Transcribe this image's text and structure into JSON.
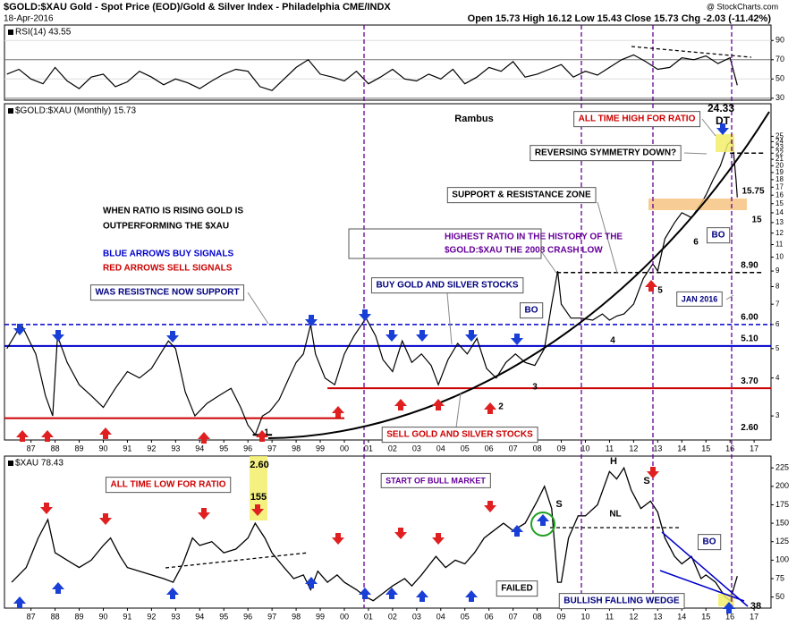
{
  "header": {
    "title": "$GOLD:$XAU Gold - Spot Price (EOD)/Gold & Silver Index - Philadelphia CME/INDX",
    "date": "18-Apr-2016",
    "ohlc": "Open 15.73 High 16.12 Low 15.43 Close 15.73 Chg -2.03 (-11.42%)",
    "credit": "@ StockCharts.com"
  },
  "chart_data": [
    {
      "type": "line",
      "label": "RSI(14) 43.55",
      "color": "#000000",
      "xlim": [
        1985.9,
        2017.7
      ],
      "ylim": [
        28,
        106
      ],
      "yticks": [
        30,
        50,
        70,
        90
      ],
      "grid": true,
      "x": [
        1986,
        1986.5,
        1987,
        1987.5,
        1988,
        1988.5,
        1989,
        1989.5,
        1990,
        1990.5,
        1991,
        1991.5,
        1992,
        1992.5,
        1993,
        1993.5,
        1994,
        1994.5,
        1995,
        1995.5,
        1996,
        1996.5,
        1997,
        1997.5,
        1998,
        1998.5,
        1999,
        1999.5,
        2000,
        2000.5,
        2001,
        2001.5,
        2002,
        2002.5,
        2003,
        2003.5,
        2004,
        2004.5,
        2005,
        2005.5,
        2006,
        2006.5,
        2007,
        2007.5,
        2008,
        2008.5,
        2009,
        2009.5,
        2010,
        2010.5,
        2011,
        2011.5,
        2012,
        2012.5,
        2013,
        2013.5,
        2014,
        2014.5,
        2015,
        2015.5,
        2016,
        2016.3
      ],
      "values": [
        55,
        60,
        50,
        45,
        62,
        48,
        40,
        52,
        55,
        42,
        47,
        58,
        52,
        44,
        50,
        46,
        40,
        48,
        55,
        60,
        58,
        42,
        38,
        50,
        62,
        70,
        55,
        52,
        48,
        58,
        45,
        52,
        60,
        50,
        48,
        55,
        50,
        60,
        45,
        52,
        62,
        58,
        68,
        52,
        55,
        60,
        65,
        52,
        58,
        54,
        62,
        70,
        75,
        68,
        60,
        62,
        72,
        70,
        74,
        66,
        72,
        43.55
      ]
    },
    {
      "type": "line",
      "label": "$GOLD:$XAU (Monthly) 15.73",
      "color": "#000000",
      "log_scale": true,
      "xlim": [
        1985.9,
        2017.7
      ],
      "ylim": [
        2.5,
        32
      ],
      "yticks": [
        3,
        4,
        5,
        6,
        7,
        8,
        9,
        10,
        11,
        12,
        13,
        14,
        15,
        16,
        17,
        18,
        19,
        20,
        21,
        22,
        23,
        24,
        25
      ],
      "xticks": [
        {
          "value": 1987,
          "label": "87"
        },
        {
          "value": 1988,
          "label": "88"
        },
        {
          "value": 1989,
          "label": "89"
        },
        {
          "value": 1990,
          "label": "90"
        },
        {
          "value": 1991,
          "label": "91"
        },
        {
          "value": 1992,
          "label": "92"
        },
        {
          "value": 1993,
          "label": "93"
        },
        {
          "value": 1994,
          "label": "94"
        },
        {
          "value": 1995,
          "label": "95"
        },
        {
          "value": 1996,
          "label": "96"
        },
        {
          "value": 1997,
          "label": "97"
        },
        {
          "value": 1998,
          "label": "98"
        },
        {
          "value": 1999,
          "label": "99"
        },
        {
          "value": 2000,
          "label": "00"
        },
        {
          "value": 2001,
          "label": "01"
        },
        {
          "value": 2002,
          "label": "02"
        },
        {
          "value": 2003,
          "label": "03"
        },
        {
          "value": 2004,
          "label": "04"
        },
        {
          "value": 2005,
          "label": "05"
        },
        {
          "value": 2006,
          "label": "06"
        },
        {
          "value": 2007,
          "label": "07"
        },
        {
          "value": 2008,
          "label": "08"
        },
        {
          "value": 2009,
          "label": "09"
        },
        {
          "value": 2010,
          "label": "10"
        },
        {
          "value": 2011,
          "label": "11"
        },
        {
          "value": 2012,
          "label": "12"
        },
        {
          "value": 2013,
          "label": "13"
        },
        {
          "value": 2014,
          "label": "14"
        },
        {
          "value": 2015,
          "label": "15"
        },
        {
          "value": 2016,
          "label": "16"
        },
        {
          "value": 2017,
          "label": "17"
        }
      ],
      "x": [
        1986.0,
        1986.6,
        1987.2,
        1987.6,
        1987.9,
        1988.1,
        1988.5,
        1989.0,
        1989.5,
        1990.0,
        1990.5,
        1991.0,
        1991.5,
        1992.0,
        1992.7,
        1993.0,
        1993.4,
        1993.8,
        1994.3,
        1994.8,
        1995.3,
        1995.7,
        1996.0,
        1996.3,
        1996.6,
        1996.9,
        1997.3,
        1997.7,
        1998.0,
        1998.3,
        1998.6,
        1998.8,
        1999.2,
        1999.6,
        2000.0,
        2000.4,
        2000.9,
        2001.3,
        2001.6,
        2002.0,
        2002.4,
        2002.8,
        2003.2,
        2003.6,
        2003.9,
        2004.3,
        2004.7,
        2005.1,
        2005.5,
        2005.9,
        2006.3,
        2006.7,
        2007.1,
        2007.5,
        2007.9,
        2008.3,
        2008.6,
        2008.85,
        2009.0,
        2009.4,
        2009.8,
        2010.3,
        2010.7,
        2011.0,
        2011.3,
        2011.6,
        2012.0,
        2012.4,
        2012.8,
        2013.0,
        2013.3,
        2013.7,
        2014.0,
        2014.4,
        2014.8,
        2015.0,
        2015.3,
        2015.6,
        2015.9,
        2016.1,
        2016.25,
        2016.3
      ],
      "values": [
        5.0,
        6.0,
        4.8,
        3.5,
        3.0,
        5.5,
        4.5,
        3.8,
        3.5,
        3.2,
        3.7,
        4.2,
        4.0,
        4.3,
        5.3,
        5.0,
        3.6,
        3.0,
        3.3,
        3.5,
        3.7,
        3.2,
        2.8,
        2.6,
        3.0,
        3.1,
        3.4,
        4.0,
        4.5,
        4.8,
        6.0,
        4.8,
        4.0,
        3.8,
        4.8,
        5.5,
        6.3,
        5.5,
        4.6,
        4.2,
        5.3,
        4.5,
        4.8,
        4.4,
        3.8,
        4.6,
        5.2,
        4.8,
        5.4,
        4.3,
        4.0,
        4.5,
        4.8,
        4.5,
        4.4,
        5.0,
        7.0,
        9.0,
        7.0,
        6.3,
        6.3,
        6.2,
        6.5,
        6.2,
        6.4,
        6.5,
        7.0,
        8.5,
        9.5,
        9.0,
        11.5,
        13.0,
        14.0,
        13.5,
        15.0,
        16.0,
        18.0,
        20.0,
        23.5,
        24.3,
        18.0,
        15.73
      ],
      "levels": [
        {
          "value": 8.9,
          "label": "8.90",
          "color": "#000000",
          "dash": true,
          "x": [
            2008.8,
            2017.4
          ]
        },
        {
          "value": 6.0,
          "label": "6.00",
          "color": "#0000cc",
          "dash": true,
          "x": [
            1985.9,
            2017.7
          ]
        },
        {
          "value": 5.1,
          "label": "5.10",
          "color": "#0000cc",
          "dash": false,
          "x": [
            1985.9,
            2017.7
          ]
        },
        {
          "value": 3.7,
          "label": "3.70",
          "color": "#cc0000",
          "dash": false,
          "x": [
            1999.3,
            2017.7
          ]
        },
        {
          "value": 2.6,
          "label": "2.60",
          "color": "#000000",
          "dash": false,
          "x": [
            1996.2,
            1997.0
          ]
        },
        {
          "value": 2.95,
          "color": "#cc0000",
          "dash": false,
          "x": [
            1985.9,
            2000.0
          ]
        },
        {
          "value": 22,
          "color": "#000000",
          "dash": true,
          "x": [
            2016.0,
            2017.4
          ]
        }
      ],
      "annotations": [
        "Rambus",
        "24.33",
        "DT",
        "ALL TIME HIGH FOR RATIO",
        "REVERSING SYMMETRY DOWN?",
        "SUPPORT & RESISTANCE ZONE",
        "WHEN RATIO IS RISING GOLD IS",
        "OUTPERFORMING THE $XAU",
        "BLUE ARROWS BUY SIGNALS",
        "RED ARROWS SELL SIGNALS",
        "HIGHEST RATIO IN THE HISTORY OF THE",
        "$GOLD:$XAU THE 2008 CRASH LOW",
        "WAS RESISTNCE NOW SUPPORT",
        "BUY GOLD AND SILVER STOCKS",
        "BO",
        "JAN 2016",
        "BO",
        "SELL GOLD AND SILVER STOCKS",
        "1",
        "2",
        "3",
        "4",
        "5",
        "6",
        "15.75",
        "15"
      ]
    },
    {
      "type": "line",
      "label": "$XAU 78.43",
      "color": "#000000",
      "xlim": [
        1985.9,
        2017.7
      ],
      "ylim": [
        35,
        241
      ],
      "yticks": [
        50,
        75,
        100,
        125,
        150,
        175,
        200,
        225
      ],
      "xticks": [
        {
          "value": 1987,
          "label": "87"
        },
        {
          "value": 1988,
          "label": "88"
        },
        {
          "value": 1989,
          "label": "89"
        },
        {
          "value": 1990,
          "label": "90"
        },
        {
          "value": 1991,
          "label": "91"
        },
        {
          "value": 1992,
          "label": "92"
        },
        {
          "value": 1993,
          "label": "93"
        },
        {
          "value": 1994,
          "label": "94"
        },
        {
          "value": 1995,
          "label": "95"
        },
        {
          "value": 1996,
          "label": "96"
        },
        {
          "value": 1997,
          "label": "97"
        },
        {
          "value": 1998,
          "label": "98"
        },
        {
          "value": 1999,
          "label": "99"
        },
        {
          "value": 2000,
          "label": "00"
        },
        {
          "value": 2001,
          "label": "01"
        },
        {
          "value": 2002,
          "label": "02"
        },
        {
          "value": 2003,
          "label": "03"
        },
        {
          "value": 2004,
          "label": "04"
        },
        {
          "value": 2005,
          "label": "05"
        },
        {
          "value": 2006,
          "label": "06"
        },
        {
          "value": 2007,
          "label": "07"
        },
        {
          "value": 2008,
          "label": "08"
        },
        {
          "value": 2009,
          "label": "09"
        },
        {
          "value": 2010,
          "label": "10"
        },
        {
          "value": 2011,
          "label": "11"
        },
        {
          "value": 2012,
          "label": "12"
        },
        {
          "value": 2013,
          "label": "13"
        },
        {
          "value": 2014,
          "label": "14"
        },
        {
          "value": 2015,
          "label": "15"
        },
        {
          "value": 2016,
          "label": "16"
        },
        {
          "value": 2017,
          "label": "17"
        }
      ],
      "x": [
        1986.2,
        1986.8,
        1987.3,
        1987.7,
        1988.0,
        1988.5,
        1989.0,
        1989.5,
        1990.0,
        1990.3,
        1990.7,
        1991.0,
        1991.5,
        1992.0,
        1992.5,
        1992.9,
        1993.3,
        1993.7,
        1994.0,
        1994.5,
        1995.0,
        1995.5,
        1996.0,
        1996.3,
        1996.7,
        1997.0,
        1997.5,
        1997.9,
        1998.3,
        1998.6,
        1998.9,
        1999.3,
        1999.7,
        2000.0,
        2000.5,
        2000.9,
        2001.2,
        2001.6,
        2002.0,
        2002.5,
        2002.8,
        2003.2,
        2003.8,
        2004.2,
        2004.6,
        2005.0,
        2005.4,
        2005.8,
        2006.2,
        2006.6,
        2007.0,
        2007.5,
        2008.0,
        2008.3,
        2008.6,
        2008.85,
        2009.0,
        2009.3,
        2009.7,
        2010.0,
        2010.5,
        2011.0,
        2011.3,
        2011.6,
        2011.9,
        2012.3,
        2012.7,
        2013.0,
        2013.3,
        2013.7,
        2014.0,
        2014.4,
        2014.8,
        2015.0,
        2015.4,
        2015.8,
        2016.0,
        2016.3
      ],
      "values": [
        70,
        90,
        130,
        155,
        110,
        100,
        90,
        100,
        120,
        130,
        105,
        90,
        85,
        80,
        75,
        70,
        95,
        130,
        120,
        125,
        110,
        115,
        130,
        150,
        130,
        110,
        90,
        75,
        80,
        60,
        85,
        70,
        80,
        70,
        60,
        50,
        45,
        55,
        65,
        75,
        65,
        80,
        105,
        90,
        100,
        95,
        110,
        130,
        140,
        150,
        140,
        150,
        180,
        200,
        170,
        70,
        70,
        130,
        160,
        160,
        175,
        220,
        210,
        225,
        195,
        170,
        180,
        165,
        130,
        105,
        95,
        105,
        75,
        80,
        70,
        50,
        45,
        78.43
      ],
      "annotations": [
        "2.60",
        "155",
        "ALL TIME LOW FOR RATIO",
        "START OF BULL MARKET",
        "S",
        "H",
        "S",
        "NL",
        "FAILED",
        "BO",
        "BULLISH FALLING WEDGE",
        "38"
      ]
    }
  ]
}
